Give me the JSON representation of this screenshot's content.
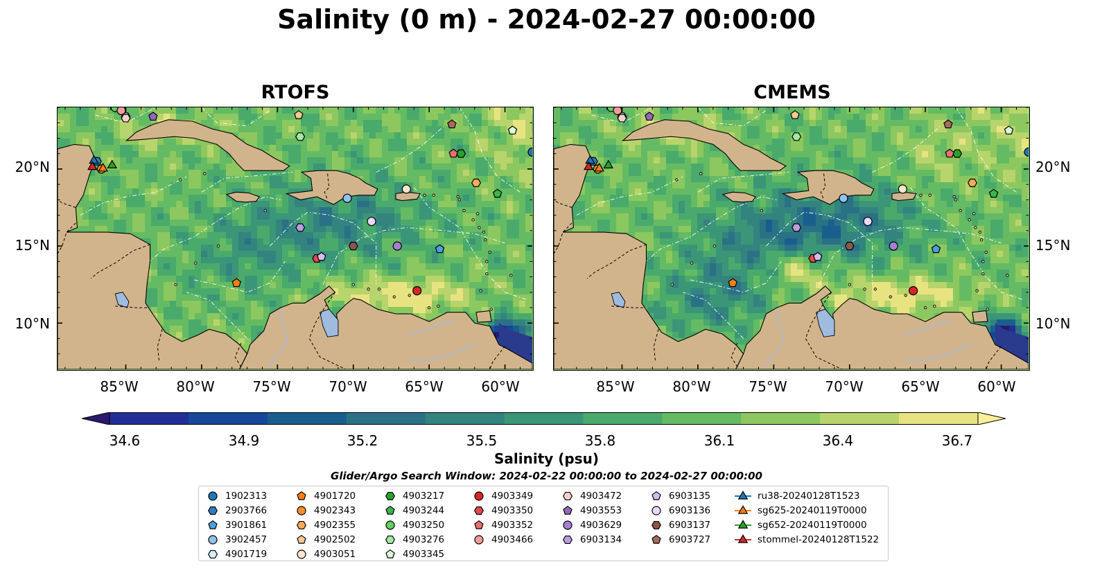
{
  "title": "Salinity (0 m) - 2024-02-27 00:00:00",
  "panels": [
    {
      "title": "RTOFS"
    },
    {
      "title": "CMEMS"
    }
  ],
  "axes": {
    "lat_labels": [
      "20°N",
      "15°N",
      "10°N"
    ],
    "lon_labels": [
      "85°W",
      "80°W",
      "75°W",
      "70°W",
      "65°W",
      "60°W"
    ],
    "lat_range": [
      7,
      24
    ],
    "lon_range": [
      -89.5,
      -58.2
    ],
    "lat_ticks": [
      20,
      15,
      10
    ],
    "lon_ticks": [
      -85,
      -80,
      -75,
      -70,
      -65,
      -60
    ]
  },
  "colorbar": {
    "label": "Salinity (psu)",
    "ticks": [
      "34.6",
      "34.9",
      "35.2",
      "35.5",
      "35.8",
      "36.1",
      "36.4",
      "36.7"
    ],
    "range": [
      34.6,
      36.7
    ],
    "extend": "both",
    "colormap": "haline",
    "colors": [
      "#2a186c",
      "#232d97",
      "#16479b",
      "#1a5e8d",
      "#2a7186",
      "#33837f",
      "#3b9677",
      "#4aaa6c",
      "#65bb63",
      "#8cc85f",
      "#b8d46c",
      "#e8e381",
      "#fdef9a"
    ]
  },
  "search_window": "Glider/Argo Search Window: 2024-02-22 00:00:00 to 2024-02-27 00:00:00",
  "legend": {
    "columns": [
      [
        {
          "label": "1902313",
          "marker": "circle",
          "color": "#1f77b4"
        },
        {
          "label": "2903766",
          "marker": "hexagon",
          "color": "#2f7dbf"
        },
        {
          "label": "3901861",
          "marker": "pentagon",
          "color": "#4d9fdb"
        },
        {
          "label": "3902457",
          "marker": "circle",
          "color": "#8ec3ec"
        },
        {
          "label": "4901719",
          "marker": "hexagon",
          "color": "#d4ecfb"
        }
      ],
      [
        {
          "label": "4901720",
          "marker": "pentagon",
          "color": "#f77f0e"
        },
        {
          "label": "4902343",
          "marker": "circle",
          "color": "#fa8f2a"
        },
        {
          "label": "4902355",
          "marker": "hexagon",
          "color": "#fcaa5c"
        },
        {
          "label": "4902502",
          "marker": "pentagon",
          "color": "#fdc792"
        },
        {
          "label": "4903051",
          "marker": "circle",
          "color": "#fee6cc"
        }
      ],
      [
        {
          "label": "4903217",
          "marker": "hexagon",
          "color": "#2ca02c"
        },
        {
          "label": "4903244",
          "marker": "pentagon",
          "color": "#3cb44b"
        },
        {
          "label": "4903250",
          "marker": "circle",
          "color": "#62cf62"
        },
        {
          "label": "4903276",
          "marker": "hexagon",
          "color": "#a3e7a0"
        },
        {
          "label": "4903345",
          "marker": "pentagon",
          "color": "#dcf8d6"
        }
      ],
      [
        {
          "label": "4903349",
          "marker": "circle",
          "color": "#d62728"
        },
        {
          "label": "4903350",
          "marker": "hexagon",
          "color": "#e04a4b"
        },
        {
          "label": "4903352",
          "marker": "pentagon",
          "color": "#ea6f6f"
        },
        {
          "label": "4903466",
          "marker": "circle",
          "color": "#f29b9b"
        }
      ],
      [
        {
          "label": "4903472",
          "marker": "hexagon",
          "color": "#fbd0cd"
        },
        {
          "label": "4903553",
          "marker": "pentagon",
          "color": "#9467bd"
        },
        {
          "label": "4903629",
          "marker": "circle",
          "color": "#a67fd0"
        },
        {
          "label": "6903134",
          "marker": "hexagon",
          "color": "#ba9de1"
        }
      ],
      [
        {
          "label": "6903135",
          "marker": "pentagon",
          "color": "#d1bdf0"
        },
        {
          "label": "6903136",
          "marker": "circle",
          "color": "#ead8fb"
        },
        {
          "label": "6903137",
          "marker": "hexagon",
          "color": "#8c564b"
        },
        {
          "label": "6903727",
          "marker": "pentagon",
          "color": "#a56b5e"
        }
      ],
      [
        {
          "label": "ru38-20240128T1523",
          "marker": "triangle-line",
          "color": "#1f77b4"
        },
        {
          "label": "sg625-20240119T0000",
          "marker": "triangle-line",
          "color": "#ff7f0e"
        },
        {
          "label": "sg652-20240119T0000",
          "marker": "triangle-line",
          "color": "#2ca02c"
        },
        {
          "label": "stommel-20240128T1522",
          "marker": "triangle-line",
          "color": "#d62728"
        }
      ]
    ]
  },
  "platforms": [
    {
      "id": "1902313",
      "lon": -58.2,
      "lat": 21.1
    },
    {
      "id": "2903766",
      "lon": -86.9,
      "lat": 20.5
    },
    {
      "id": "3901861",
      "lon": -64.3,
      "lat": 14.8
    },
    {
      "id": "3902457",
      "lon": -70.4,
      "lat": 18.1
    },
    {
      "id": "4901719",
      "lon": -85.0,
      "lat": 23.4
    },
    {
      "id": "4901720",
      "lon": -77.7,
      "lat": 12.6
    },
    {
      "id": "4902343",
      "lon": -86.6,
      "lat": 20.0
    },
    {
      "id": "4902355",
      "lon": -61.9,
      "lat": 19.1
    },
    {
      "id": "4902502",
      "lon": -73.6,
      "lat": 23.5
    },
    {
      "id": "4903051",
      "lon": -66.5,
      "lat": 18.7
    },
    {
      "id": "4903217",
      "lon": -62.9,
      "lat": 21.0
    },
    {
      "id": "4903244",
      "lon": -60.5,
      "lat": 18.4
    },
    {
      "id": "4903250",
      "lon": -85.7,
      "lat": 24.0
    },
    {
      "id": "4903276",
      "lon": -73.5,
      "lat": 22.1
    },
    {
      "id": "4903345",
      "lon": -59.5,
      "lat": 22.5
    },
    {
      "id": "4903349",
      "lon": -65.8,
      "lat": 12.1
    },
    {
      "id": "4903350",
      "lon": -72.4,
      "lat": 14.2
    },
    {
      "id": "4903352",
      "lon": -63.4,
      "lat": 21.0
    },
    {
      "id": "4903466",
      "lon": -85.3,
      "lat": 23.8
    },
    {
      "id": "4903472",
      "lon": -85.0,
      "lat": 23.3
    },
    {
      "id": "4903553",
      "lon": -83.2,
      "lat": 23.4
    },
    {
      "id": "4903629",
      "lon": -67.1,
      "lat": 15.0
    },
    {
      "id": "6903134",
      "lon": -73.5,
      "lat": 16.2
    },
    {
      "id": "6903135",
      "lon": -72.1,
      "lat": 14.3
    },
    {
      "id": "6903136",
      "lon": -68.8,
      "lat": 16.6
    },
    {
      "id": "6903137",
      "lon": -70.0,
      "lat": 15.0
    },
    {
      "id": "6903727",
      "lon": -63.5,
      "lat": 22.9
    },
    {
      "id": "ru38-20240128T1523",
      "lon": -87.1,
      "lat": 20.6
    },
    {
      "id": "sg625-20240119T0000",
      "lon": -86.5,
      "lat": 20.1
    },
    {
      "id": "sg652-20240119T0000",
      "lon": -85.9,
      "lat": 20.3
    },
    {
      "id": "stommel-20240128T1522",
      "lon": -87.2,
      "lat": 20.2
    }
  ]
}
